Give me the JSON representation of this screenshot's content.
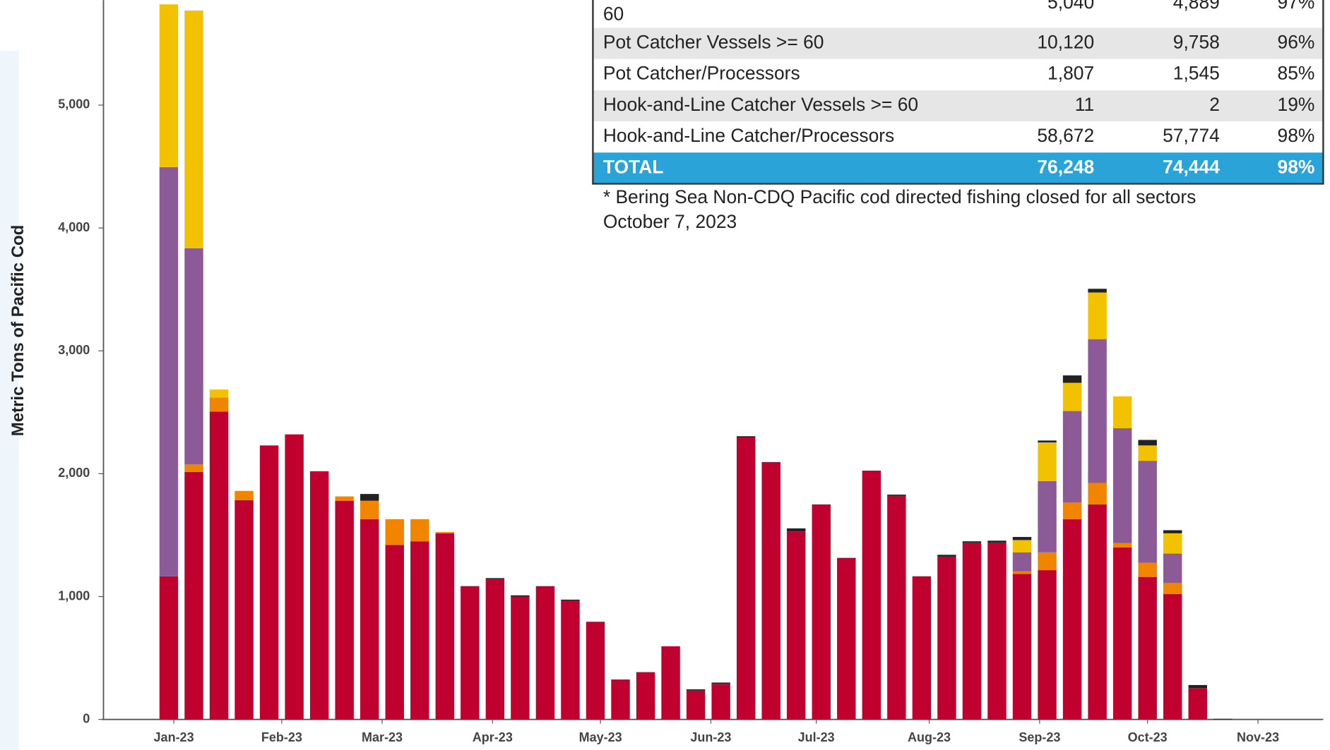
{
  "chart_data": {
    "type": "bar",
    "stacked": true,
    "y_label": "Metric Tons of Pacific Cod",
    "xlim": [
      -2.67,
      46
    ],
    "xticks": [
      {
        "value": 0.2,
        "label": "Jan-23"
      },
      {
        "value": 4.5,
        "label": "Feb-23"
      },
      {
        "value": 8.5,
        "label": "Mar-23"
      },
      {
        "value": 12.9,
        "label": "Apr-23"
      },
      {
        "value": 17.2,
        "label": "May-23"
      },
      {
        "value": 21.6,
        "label": "Jun-23"
      },
      {
        "value": 25.8,
        "label": "Jul-23"
      },
      {
        "value": 30.3,
        "label": "Aug-23"
      },
      {
        "value": 34.7,
        "label": "Sep-23"
      },
      {
        "value": 39,
        "label": "Oct-23"
      },
      {
        "value": 43.4,
        "label": "Nov-23"
      }
    ],
    "x": [
      0,
      1,
      2,
      3,
      4,
      5,
      6,
      7,
      8,
      9,
      10,
      11,
      12,
      13,
      14,
      15,
      16,
      17,
      18,
      19,
      20,
      21,
      22,
      23,
      24,
      25,
      26,
      27,
      28,
      29,
      30,
      31,
      32,
      33,
      34,
      35,
      36,
      37,
      38,
      39,
      40,
      41,
      42
    ],
    "ylim": [
      0,
      5855
    ],
    "yticks": [
      0,
      {
        "value": 1000,
        "label": "1,000"
      },
      {
        "value": 2000,
        "label": "2,000"
      },
      {
        "value": 3000,
        "label": "3,000"
      },
      {
        "value": 4000,
        "label": "4,000"
      },
      {
        "value": 5000,
        "label": "5,000"
      }
    ],
    "series": [
      {
        "color": "#c0002f",
        "values": [
          1165,
          2015,
          2505,
          1785,
          2230,
          2320,
          2020,
          1780,
          1630,
          1420,
          1450,
          1515,
          1085,
          1140,
          1000,
          1085,
          965,
          795,
          325,
          385,
          595,
          235,
          290,
          2295,
          2095,
          1530,
          1750,
          1315,
          2025,
          1820,
          1165,
          1325,
          1440,
          1440,
          1185,
          1215,
          1630,
          1750,
          1400,
          1160,
          1020,
          255,
          0
        ]
      },
      {
        "color": "#f28500",
        "values": [
          0,
          60,
          115,
          75,
          0,
          0,
          0,
          35,
          150,
          210,
          180,
          10,
          0,
          0,
          0,
          0,
          0,
          0,
          0,
          0,
          0,
          0,
          0,
          0,
          0,
          0,
          0,
          0,
          0,
          0,
          0,
          0,
          0,
          0,
          20,
          145,
          135,
          175,
          35,
          115,
          90,
          0,
          0
        ]
      },
      {
        "color": "#8c5a96",
        "values": [
          3330,
          1760,
          0,
          0,
          0,
          0,
          0,
          0,
          0,
          0,
          0,
          0,
          0,
          0,
          0,
          0,
          0,
          0,
          0,
          0,
          0,
          0,
          0,
          0,
          0,
          0,
          0,
          0,
          0,
          0,
          0,
          0,
          0,
          0,
          155,
          580,
          745,
          1170,
          935,
          830,
          240,
          0,
          0
        ]
      },
      {
        "color": "#f2c200",
        "values": [
          1325,
          1935,
          65,
          0,
          0,
          0,
          0,
          0,
          0,
          0,
          0,
          0,
          0,
          0,
          0,
          0,
          0,
          0,
          0,
          0,
          0,
          0,
          0,
          0,
          0,
          0,
          0,
          0,
          0,
          0,
          0,
          0,
          0,
          0,
          100,
          315,
          230,
          380,
          260,
          125,
          165,
          0,
          0
        ]
      },
      {
        "color": "#222222",
        "values": [
          0,
          0,
          0,
          0,
          0,
          0,
          0,
          0,
          55,
          0,
          0,
          0,
          0,
          10,
          10,
          0,
          10,
          0,
          0,
          0,
          0,
          10,
          10,
          10,
          0,
          25,
          0,
          0,
          0,
          10,
          0,
          15,
          10,
          15,
          25,
          15,
          60,
          30,
          0,
          45,
          25,
          25,
          5
        ]
      }
    ]
  },
  "table": {
    "rows": [
      [
        "60",
        "5,040",
        "4,889",
        "97%"
      ],
      [
        "Pot Catcher Vessels >= 60",
        "10,120",
        "9,758",
        "96%"
      ],
      [
        "Pot Catcher/Processors",
        "1,807",
        "1,545",
        "85%"
      ],
      [
        "Hook-and-Line Catcher Vessels >= 60",
        "11",
        "2",
        "19%"
      ],
      [
        "Hook-and-Line Catcher/Processors",
        "58,672",
        "57,774",
        "98%"
      ],
      [
        "TOTAL",
        "76,248",
        "74,444",
        "98%"
      ]
    ],
    "footnote": [
      "* Bering Sea Non-CDQ Pacific cod directed fishing closed for all sectors",
      "October 7, 2023"
    ]
  }
}
